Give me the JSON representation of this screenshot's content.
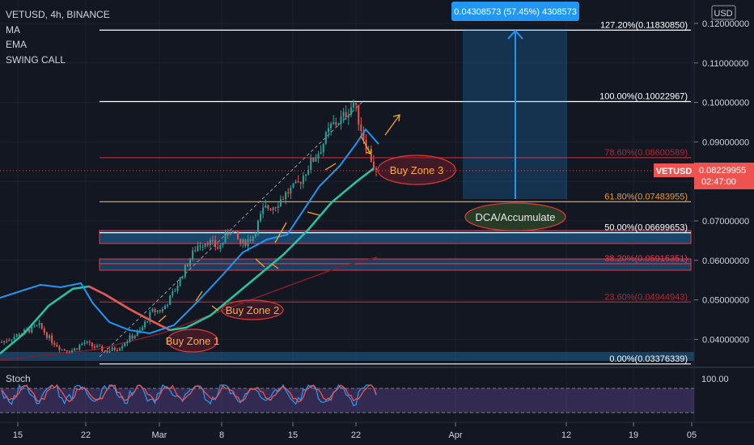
{
  "header": {
    "symbol_line": "VETUSD, 4h, BINANCE",
    "indicators": [
      "MA",
      "EMA",
      "SWING CALL"
    ]
  },
  "currency": "USD",
  "price_scale": {
    "ticks": [
      "0.12000000",
      "0.11000000",
      "0.10000000",
      "0.09000000",
      "0.08000000",
      "0.07000000",
      "0.06000000",
      "0.05000000",
      "0.04000000"
    ]
  },
  "time_axis": {
    "labels": [
      "15",
      "22",
      "Mar",
      "8",
      "15",
      "22",
      "Apr",
      "12",
      "19",
      "05"
    ]
  },
  "last_price": {
    "symbol": "VETUSD",
    "price": "0.08229955",
    "countdown": "02:47:00",
    "color": "#ef5350"
  },
  "measure_box": {
    "label": "0.04308573 (57.45%) 4308573",
    "color": "#2196f3"
  },
  "fib_levels": [
    {
      "label": "127.20%(0.11830850)",
      "price": 0.1183085,
      "color": "#ffffff"
    },
    {
      "label": "100.00%(0.10022967)",
      "price": 0.10022967,
      "color": "#ffffff"
    },
    {
      "label": "78.60%(0.08600589)",
      "price": 0.08600589,
      "color": "#b22833"
    },
    {
      "label": "61.80%(0.07483955)",
      "price": 0.07483955,
      "color": "#f09a2b"
    },
    {
      "label": "50.00%(0.06699653)",
      "price": 0.06699653,
      "color": "#ffffff"
    },
    {
      "label": "38.20%(0.05915351)",
      "price": 0.05915351,
      "color": "#f23645"
    },
    {
      "label": "23.60%(0.04944943)",
      "price": 0.04944943,
      "color": "#b22833"
    },
    {
      "label": "0.00%(0.03376339)",
      "price": 0.03376339,
      "color": "#ffffff"
    }
  ],
  "annotations": {
    "buy_zone_1": "Buy Zone 1",
    "buy_zone_2": "Buy Zone 2",
    "buy_zone_3": "Buy Zone 3",
    "dca": "DCA/Accumulate"
  },
  "stoch": {
    "label": "Stoch",
    "tick": "100.00"
  },
  "chart_data": {
    "type": "candlestick",
    "y_range": [
      0.034,
      0.121
    ],
    "trend_polyline_price": [
      [
        0,
        0.0393
      ],
      [
        0.04,
        0.041
      ],
      [
        0.1,
        0.0435
      ],
      [
        0.13,
        0.04
      ],
      [
        0.16,
        0.0375
      ],
      [
        0.19,
        0.0372
      ],
      [
        0.22,
        0.0392
      ],
      [
        0.25,
        0.038
      ],
      [
        0.28,
        0.037
      ],
      [
        0.31,
        0.0378
      ],
      [
        0.34,
        0.0402
      ],
      [
        0.37,
        0.042
      ],
      [
        0.4,
        0.047
      ],
      [
        0.43,
        0.0475
      ],
      [
        0.46,
        0.052
      ],
      [
        0.49,
        0.058
      ],
      [
        0.52,
        0.0635
      ],
      [
        0.55,
        0.065
      ],
      [
        0.58,
        0.063
      ],
      [
        0.61,
        0.068
      ],
      [
        0.64,
        0.064
      ],
      [
        0.67,
        0.066
      ],
      [
        0.7,
        0.073
      ],
      [
        0.73,
        0.074
      ],
      [
        0.76,
        0.077
      ],
      [
        0.79,
        0.079
      ],
      [
        0.82,
        0.084
      ],
      [
        0.85,
        0.088
      ],
      [
        0.88,
        0.094
      ],
      [
        0.91,
        0.096
      ],
      [
        0.94,
        0.1
      ],
      [
        0.97,
        0.09
      ],
      [
        1,
        0.0823
      ]
    ]
  }
}
